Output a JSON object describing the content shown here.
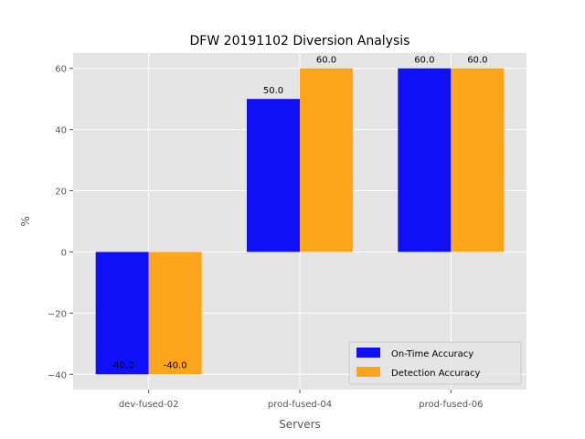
{
  "chart_data": {
    "type": "bar",
    "title": "DFW 20191102 Diversion Analysis",
    "xlabel": "Servers",
    "ylabel": "%",
    "categories": [
      "dev-fused-02",
      "prod-fused-04",
      "prod-fused-06"
    ],
    "series": [
      {
        "name": "On-Time Accuracy",
        "values": [
          -40,
          50,
          60
        ],
        "labels": [
          "-40.0",
          "50.0",
          "60.0"
        ],
        "color": "#1010f8"
      },
      {
        "name": "Detection Accuracy",
        "values": [
          -40,
          60,
          60
        ],
        "labels": [
          "-40.0",
          "60.0",
          "60.0"
        ],
        "color": "#ffa51c"
      }
    ],
    "ylim": [
      -45,
      65
    ],
    "yticks": [
      -40,
      -20,
      0,
      20,
      40,
      60
    ],
    "ytick_labels": [
      "−40",
      "−20",
      "0",
      "20",
      "40",
      "60"
    ],
    "grid": true,
    "legend_position": "lower-right",
    "background": "#e5e5e5"
  }
}
